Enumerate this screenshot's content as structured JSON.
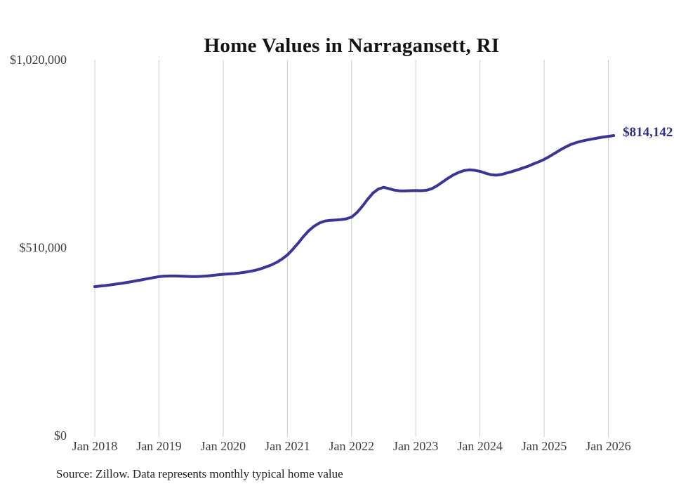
{
  "chart_data": {
    "type": "line",
    "title": "Home Values in Narragansett, RI",
    "xlabel": "",
    "ylabel": "",
    "unit": "USD",
    "grid": "vertical-only",
    "legend": "none",
    "ylim": [
      0,
      1020000
    ],
    "y_ticks": [
      {
        "value": 0,
        "label": "$0"
      },
      {
        "value": 510000,
        "label": "$510,000"
      },
      {
        "value": 1020000,
        "label": "$1,020,000"
      }
    ],
    "x_ticks": [
      "Jan 2018",
      "Jan 2019",
      "Jan 2020",
      "Jan 2021",
      "Jan 2022",
      "Jan 2023",
      "Jan 2024",
      "Jan 2025",
      "Jan 2026"
    ],
    "x_frequency": "monthly",
    "months": [
      "2018-01",
      "2018-02",
      "2018-03",
      "2018-04",
      "2018-05",
      "2018-06",
      "2018-07",
      "2018-08",
      "2018-09",
      "2018-10",
      "2018-11",
      "2018-12",
      "2019-01",
      "2019-02",
      "2019-03",
      "2019-04",
      "2019-05",
      "2019-06",
      "2019-07",
      "2019-08",
      "2019-09",
      "2019-10",
      "2019-11",
      "2019-12",
      "2020-01",
      "2020-02",
      "2020-03",
      "2020-04",
      "2020-05",
      "2020-06",
      "2020-07",
      "2020-08",
      "2020-09",
      "2020-10",
      "2020-11",
      "2020-12",
      "2021-01",
      "2021-02",
      "2021-03",
      "2021-04",
      "2021-05",
      "2021-06",
      "2021-07",
      "2021-08",
      "2021-09",
      "2021-10",
      "2021-11",
      "2021-12",
      "2022-01",
      "2022-02",
      "2022-03",
      "2022-04",
      "2022-05",
      "2022-06",
      "2022-07",
      "2022-08",
      "2022-09",
      "2022-10",
      "2022-11",
      "2022-12",
      "2023-01",
      "2023-02",
      "2023-03",
      "2023-04",
      "2023-05",
      "2023-06",
      "2023-07",
      "2023-08",
      "2023-09",
      "2023-10",
      "2023-11",
      "2023-12",
      "2024-01",
      "2024-02",
      "2024-03",
      "2024-04",
      "2024-05",
      "2024-06",
      "2024-07",
      "2024-08",
      "2024-09",
      "2024-10",
      "2024-11",
      "2024-12",
      "2025-01",
      "2025-02",
      "2025-03",
      "2025-04",
      "2025-05",
      "2025-06",
      "2025-07",
      "2025-08",
      "2025-09",
      "2025-10",
      "2025-11",
      "2025-12",
      "2026-01",
      "2026-02"
    ],
    "values": [
      404000,
      405500,
      407000,
      409000,
      411000,
      413000,
      415500,
      418000,
      420500,
      423000,
      426000,
      428500,
      431000,
      432500,
      433000,
      433000,
      432500,
      432000,
      431500,
      431500,
      432000,
      433000,
      434500,
      436000,
      437500,
      438500,
      439500,
      441000,
      443000,
      445500,
      448500,
      452500,
      457500,
      463000,
      470000,
      479000,
      490000,
      505000,
      522000,
      540000,
      556000,
      568000,
      577000,
      582000,
      584000,
      585000,
      586000,
      588000,
      593000,
      605000,
      622000,
      641000,
      658000,
      669000,
      673500,
      670000,
      666000,
      664000,
      664000,
      664500,
      665000,
      664500,
      665500,
      670000,
      678000,
      688000,
      698000,
      707000,
      714000,
      719000,
      721000,
      720000,
      717000,
      712000,
      708000,
      706500,
      708500,
      712500,
      716500,
      721000,
      726000,
      731000,
      737000,
      743000,
      749500,
      757500,
      766000,
      775000,
      783000,
      790000,
      795000,
      799000,
      802000,
      805000,
      807500,
      810000,
      812000,
      814142
    ],
    "final_value": 814142,
    "final_value_label": "$814,142",
    "colors": {
      "line": "#3a3596",
      "gridline": "#cccccc",
      "end_label": "#2e2f86",
      "title": "#131313",
      "tick_label": "#3f3f3f"
    },
    "source": "Source: Zillow. Data represents monthly typical home value"
  }
}
